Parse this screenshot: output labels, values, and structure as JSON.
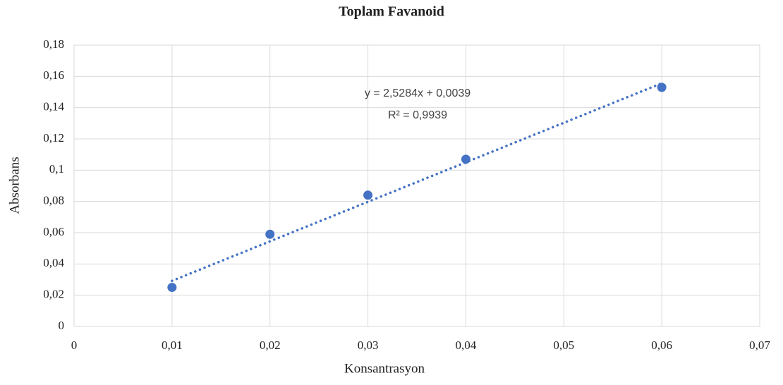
{
  "chart_data": {
    "type": "scatter",
    "title": "Toplam Favanoid",
    "x_label": "Konsantrasyon",
    "y_label": "Absorbans",
    "x": [
      0.01,
      0.02,
      0.03,
      0.04,
      0.06
    ],
    "values": [
      0.025,
      0.059,
      0.084,
      0.107,
      0.153
    ],
    "color": "#4472c4",
    "xlim": [
      0,
      0.07
    ],
    "xticks": [
      0,
      {
        "value": 0.01,
        "label": "0,01"
      },
      {
        "value": 0.02,
        "label": "0,02"
      },
      {
        "value": 0.03,
        "label": "0,03"
      },
      {
        "value": 0.04,
        "label": "0,04"
      },
      {
        "value": 0.05,
        "label": "0,05"
      },
      {
        "value": 0.06,
        "label": "0,06"
      },
      {
        "value": 0.07,
        "label": "0,07"
      }
    ],
    "ylim": [
      0,
      0.18
    ],
    "yticks": [
      0,
      {
        "value": 0.02,
        "label": "0,02"
      },
      {
        "value": 0.04,
        "label": "0,04"
      },
      {
        "value": 0.06,
        "label": "0,06"
      },
      {
        "value": 0.08,
        "label": "0,08"
      },
      {
        "value": 0.1,
        "label": "0,1"
      },
      {
        "value": 0.12,
        "label": "0,12"
      },
      {
        "value": 0.14,
        "label": "0,14"
      },
      {
        "value": 0.16,
        "label": "0,16"
      },
      {
        "value": 0.18,
        "label": "0,18"
      }
    ],
    "grid": true,
    "trendline": {
      "equation": "y = 2,5284x + 0,0039",
      "r2": "R² = 0,9939",
      "slope": 2.5284,
      "intercept": 0.0039
    }
  }
}
